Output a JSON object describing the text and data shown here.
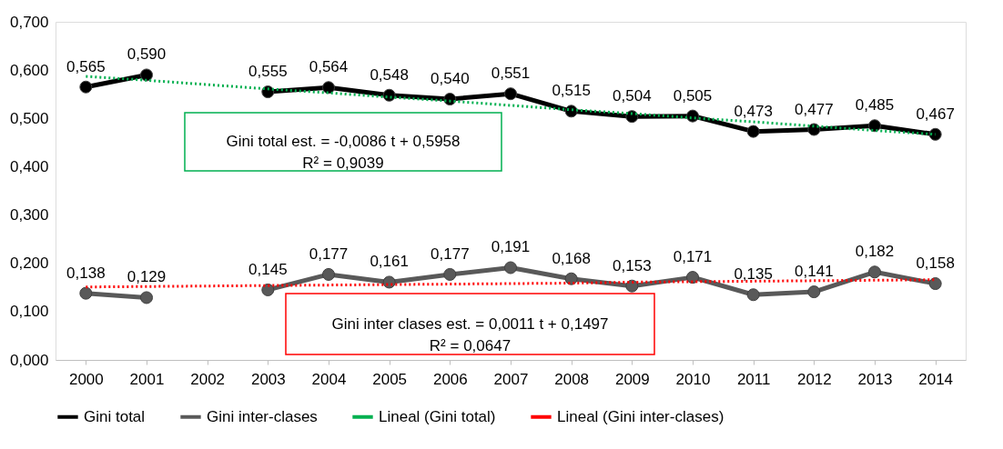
{
  "chart_data": {
    "type": "line",
    "categories": [
      "2000",
      "2001",
      "2002",
      "2003",
      "2004",
      "2005",
      "2006",
      "2007",
      "2008",
      "2009",
      "2010",
      "2011",
      "2012",
      "2013",
      "2014"
    ],
    "series": [
      {
        "name": "Gini total",
        "color": "#000000",
        "line_style": "solid",
        "values": [
          0.565,
          0.59,
          null,
          0.555,
          0.564,
          0.548,
          0.54,
          0.551,
          0.515,
          0.504,
          0.505,
          0.473,
          0.477,
          0.485,
          0.467
        ],
        "value_labels": [
          "0,565",
          "0,590",
          null,
          "0,555",
          "0,564",
          "0,548",
          "0,540",
          "0,551",
          "0,515",
          "0,504",
          "0,505",
          "0,473",
          "0,477",
          "0,485",
          "0,467"
        ]
      },
      {
        "name": "Gini inter-clases",
        "color": "#595959",
        "line_style": "solid",
        "values": [
          0.138,
          0.129,
          null,
          0.145,
          0.177,
          0.161,
          0.177,
          0.191,
          0.168,
          0.153,
          0.171,
          0.135,
          0.141,
          0.182,
          0.158
        ],
        "value_labels": [
          "0,138",
          "0,129",
          null,
          "0,145",
          "0,177",
          "0,161",
          "0,177",
          "0,191",
          "0,168",
          "0,153",
          "0,171",
          "0,135",
          "0,141",
          "0,182",
          "0,158"
        ]
      },
      {
        "name": "Lineal (Gini total)",
        "type": "line",
        "color": "#00b050",
        "values": [
          0.587,
          0.579,
          0.57,
          0.561,
          0.553,
          0.544,
          0.536,
          0.527,
          0.518,
          0.51,
          0.501,
          0.493,
          0.484,
          0.475,
          0.467
        ],
        "line_style": "dotted",
        "marker": "none"
      },
      {
        "name": "Lineal (Gini inter-clases)",
        "type": "line",
        "color": "#ff0000",
        "values": [
          0.151,
          0.152,
          0.153,
          0.154,
          0.155,
          0.156,
          0.157,
          0.158,
          0.159,
          0.161,
          0.162,
          0.163,
          0.164,
          0.165,
          0.166
        ],
        "line_style": "dotted",
        "marker": "none"
      }
    ],
    "ylim": [
      0,
      0.7
    ],
    "yticks": [
      {
        "value": 0,
        "label": "0,000"
      },
      {
        "value": 0.1,
        "label": "0,100"
      },
      {
        "value": 0.2,
        "label": "0,200"
      },
      {
        "value": 0.3,
        "label": "0,300"
      },
      {
        "value": 0.4,
        "label": "0,400"
      },
      {
        "value": 0.5,
        "label": "0,500"
      },
      {
        "value": 0.6,
        "label": "0,600"
      },
      {
        "value": 0.7,
        "label": "0,700"
      }
    ],
    "annotations": [
      "Gini total est. = -0,0086 t + 0,5958\nR² = 0,9039",
      "Gini inter clases est. = 0,0011 t + 0,1497\nR² = 0,0647"
    ],
    "marker": "circle",
    "grid": false,
    "legend": "bottom"
  }
}
